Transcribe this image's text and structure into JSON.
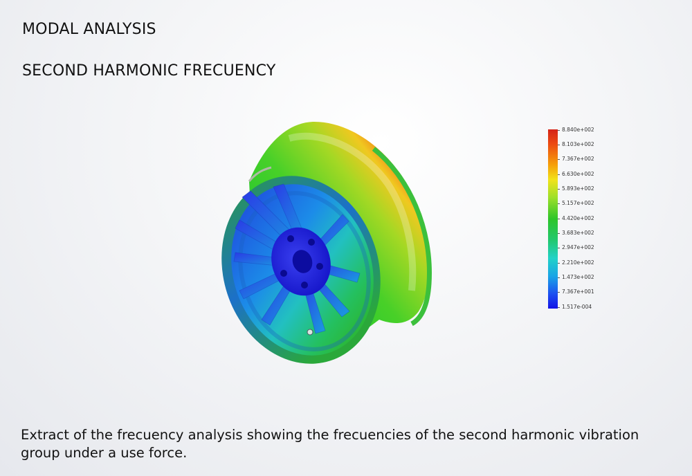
{
  "heading": {
    "line1": "MODAL ANALYSIS",
    "line2": "SECOND HARMONIC FRECUENCY"
  },
  "legend": {
    "labels": [
      "8.840e+002",
      "8.103e+002",
      "7.367e+002",
      "6.630e+002",
      "5.893e+002",
      "5.157e+002",
      "4.420e+002",
      "3.683e+002",
      "2.947e+002",
      "2.210e+002",
      "1.473e+002",
      "7.367e+001",
      "1.517e-004"
    ],
    "colors": {
      "max": "#d42418",
      "high": "#f6a10a",
      "mid": "#2ec52a",
      "low": "#22d2c8",
      "min": "#1414e6"
    }
  },
  "caption": "Extract of the frecuency analysis showing the frecuencies of the second harmonic vibration group under a use force."
}
